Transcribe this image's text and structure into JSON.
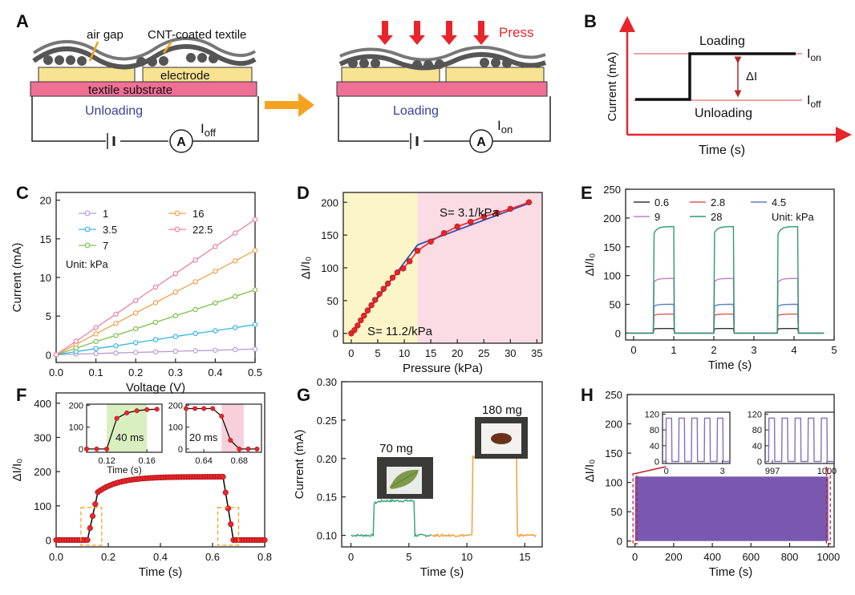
{
  "colors": {
    "red": "#e8252b",
    "textile_yellow": "#f8e392",
    "substrate_pink": "#ef6f95",
    "blue_text": "#3a3f99",
    "arrow_orange": "#f5a31f",
    "zone_yellow": "#fbf5c8",
    "zone_pink": "#fbdbe4",
    "green": "#3aa676",
    "orange": "#f0a238",
    "purple": "#7a58b0"
  },
  "panel_letters": [
    "A",
    "B",
    "C",
    "D",
    "E",
    "F",
    "G",
    "H"
  ],
  "panel_a": {
    "label_air_gap": "air gap",
    "label_cnt": "CNT-coated textile",
    "label_electrode": "electrode",
    "label_substrate": "textile substrate",
    "label_unloading": "Unloading",
    "label_loading": "Loading",
    "label_press": "Press",
    "ammeter": "A",
    "current_off_main": "I",
    "current_off_sub": "off",
    "current_on_main": "I",
    "current_on_sub": "on"
  },
  "panel_b": {
    "ylabel": "Current  (mA)",
    "xlabel": "Time (s)",
    "label_loading": "Loading",
    "label_unloading": "Unloading",
    "delta": "ΔI",
    "ion_main": "I",
    "ion_sub": "on",
    "ioff_main": "I",
    "ioff_sub": "off"
  },
  "chart_data": [
    {
      "panel": "C",
      "type": "line",
      "xlabel": "Voltage (V)",
      "ylabel": "Current (mA)",
      "xlim": [
        0,
        0.5
      ],
      "ylim": [
        -1,
        21
      ],
      "xticks": [
        "0.0",
        "0.1",
        "0.2",
        "0.3",
        "0.4",
        "0.5"
      ],
      "yticks": [
        "0",
        "5",
        "10",
        "15",
        "20"
      ],
      "x": [
        0,
        0.05,
        0.1,
        0.15,
        0.2,
        0.25,
        0.3,
        0.35,
        0.4,
        0.45,
        0.5
      ],
      "legend_note": "Unit: kPa",
      "series": [
        {
          "name": "1",
          "color": "#b89ad4",
          "values": [
            0,
            0.08,
            0.15,
            0.22,
            0.3,
            0.37,
            0.44,
            0.51,
            0.58,
            0.66,
            0.73
          ]
        },
        {
          "name": "3.5",
          "color": "#35b5e5",
          "values": [
            0,
            0.4,
            0.8,
            1.15,
            1.55,
            1.95,
            2.35,
            2.75,
            3.1,
            3.5,
            3.9
          ]
        },
        {
          "name": "7",
          "color": "#7cc14a",
          "values": [
            0,
            0.85,
            1.7,
            2.5,
            3.35,
            4.2,
            5.05,
            5.85,
            6.7,
            7.55,
            8.4
          ]
        },
        {
          "name": "16",
          "color": "#f0a04b",
          "values": [
            0,
            1.35,
            2.7,
            4.05,
            5.4,
            6.75,
            8.1,
            9.45,
            10.8,
            12.15,
            13.5
          ]
        },
        {
          "name": "22.5",
          "color": "#ec7fa8",
          "values": [
            0,
            1.75,
            3.5,
            5.25,
            7.0,
            8.75,
            10.5,
            12.25,
            14.0,
            15.75,
            17.5
          ]
        }
      ]
    },
    {
      "panel": "D",
      "type": "scatter",
      "xlabel": "Pressure (kPa)",
      "ylabel": "ΔI/I₀",
      "xlim": [
        -1.5,
        36
      ],
      "ylim": [
        -15,
        215
      ],
      "xticks": [
        "0",
        "5",
        "10",
        "15",
        "20",
        "25",
        "30",
        "35"
      ],
      "yticks": [
        "0",
        "50",
        "100",
        "150",
        "200"
      ],
      "regions": [
        {
          "from": -1.5,
          "to": 12.5,
          "color": "#fbf5c8"
        },
        {
          "from": 12.5,
          "to": 36,
          "color": "#fbdbe4"
        }
      ],
      "annotations": [
        "S= 3.1/kPa",
        "S= 11.2/kPa"
      ],
      "fits": [
        {
          "x": [
            0,
            12.5
          ],
          "y": [
            0,
            135
          ]
        },
        {
          "x": [
            12.5,
            34
          ],
          "y": [
            135,
            200
          ]
        }
      ],
      "points": {
        "x": [
          0,
          0.6,
          1.2,
          1.8,
          2.4,
          3.1,
          3.8,
          4.5,
          5.3,
          6.1,
          6.9,
          7.8,
          8.7,
          9.8,
          11,
          12.5,
          15,
          17.5,
          20,
          22.5,
          25,
          27.5,
          30,
          33.5
        ],
        "y": [
          0,
          5,
          12,
          20,
          27,
          35,
          43,
          51,
          60,
          68,
          76,
          85,
          93,
          99,
          110,
          126,
          140,
          153,
          163,
          170,
          178,
          184,
          190,
          200
        ]
      }
    },
    {
      "panel": "E",
      "type": "line",
      "xlabel": "Time (s)",
      "ylabel": "ΔI/I₀",
      "xlim": [
        -0.2,
        5
      ],
      "ylim": [
        -12,
        250
      ],
      "xticks": [
        "0",
        "1",
        "2",
        "3",
        "4",
        "5"
      ],
      "yticks": [
        "0",
        "50",
        "100",
        "150",
        "200",
        "250"
      ],
      "legend_note": "Unit: kPa",
      "pulses_on": [
        0.5,
        2.0,
        3.6
      ],
      "pulse_width": 0.5,
      "series": [
        {
          "name": "0.6",
          "color": "#333333",
          "peak": 8
        },
        {
          "name": "2.8",
          "color": "#e0585a",
          "peak": 33
        },
        {
          "name": "4.5",
          "color": "#5a7fc0",
          "peak": 50
        },
        {
          "name": "9",
          "color": "#c77ac9",
          "peak": 95
        },
        {
          "name": "28",
          "color": "#2e9b6f",
          "peak": 185
        }
      ]
    },
    {
      "panel": "F",
      "type": "line",
      "xlabel": "Time (s)",
      "ylabel": "ΔI/I₀",
      "xlim": [
        0,
        0.8
      ],
      "ylim": [
        -20,
        430
      ],
      "xticks": [
        "0.0",
        "0.2",
        "0.4",
        "0.6",
        "0.8"
      ],
      "yticks": [
        "0",
        "100",
        "200",
        "300",
        "400"
      ],
      "rise_start": 0.12,
      "rise_end": 0.16,
      "fall_start": 0.64,
      "fall_end": 0.68,
      "plateau": 185,
      "inset_rise": {
        "xticks": [
          "0.12",
          "0.16"
        ],
        "yticks": [
          "0",
          "100",
          "200"
        ],
        "xlabel": "Time (s)",
        "label": "40 ms",
        "x": [
          0.1,
          0.11,
          0.12,
          0.13,
          0.14,
          0.15,
          0.16,
          0.17
        ],
        "y": [
          0,
          0,
          0,
          140,
          165,
          175,
          180,
          182
        ]
      },
      "inset_fall": {
        "xticks": [
          "0.64",
          "0.68"
        ],
        "yticks": [
          "0",
          "100",
          "200"
        ],
        "label": "20 ms",
        "x": [
          0.62,
          0.63,
          0.64,
          0.65,
          0.66,
          0.67,
          0.68,
          0.69,
          0.7
        ],
        "y": [
          185,
          185,
          185,
          185,
          150,
          40,
          0,
          0,
          0
        ]
      }
    },
    {
      "panel": "G",
      "type": "line",
      "xlabel": "Time (s)",
      "ylabel": "Current (mA)",
      "xlim": [
        -0.8,
        16.5
      ],
      "ylim": [
        0.085,
        0.3
      ],
      "xticks": [
        "0",
        "5",
        "10",
        "15"
      ],
      "yticks": [
        "0.10",
        "0.15",
        "0.20",
        "0.25",
        "0.30"
      ],
      "annotations": [
        "70 mg",
        "180 mg"
      ],
      "series": [
        {
          "name": "70 mg",
          "color": "#3aa676",
          "base": 0.1,
          "peak": 0.145,
          "x_start": 0,
          "x_end": 7,
          "on": 2,
          "off": 5.5
        },
        {
          "name": "180 mg",
          "color": "#f0a238",
          "base": 0.1,
          "peak": 0.205,
          "x_start": 7,
          "x_end": 16,
          "on": 10.5,
          "off": 14.3
        }
      ]
    },
    {
      "panel": "H",
      "type": "area",
      "xlabel": "Time (s)",
      "ylabel": "ΔI/I₀",
      "xlim": [
        -40,
        1030
      ],
      "ylim": [
        -10,
        250
      ],
      "xticks": [
        "0",
        "200",
        "400",
        "600",
        "800",
        "1000"
      ],
      "yticks": [
        "0",
        "50",
        "100",
        "150",
        "200",
        "250"
      ],
      "fill_value": 110,
      "color": "#7a58b0",
      "inset_start": {
        "xticks": [
          "0",
          "3"
        ],
        "yticks": [
          "0",
          "40",
          "80",
          "120"
        ]
      },
      "inset_end": {
        "xticks": [
          "997",
          "1000"
        ],
        "yticks": [
          "0",
          "40",
          "80",
          "120"
        ]
      }
    }
  ]
}
